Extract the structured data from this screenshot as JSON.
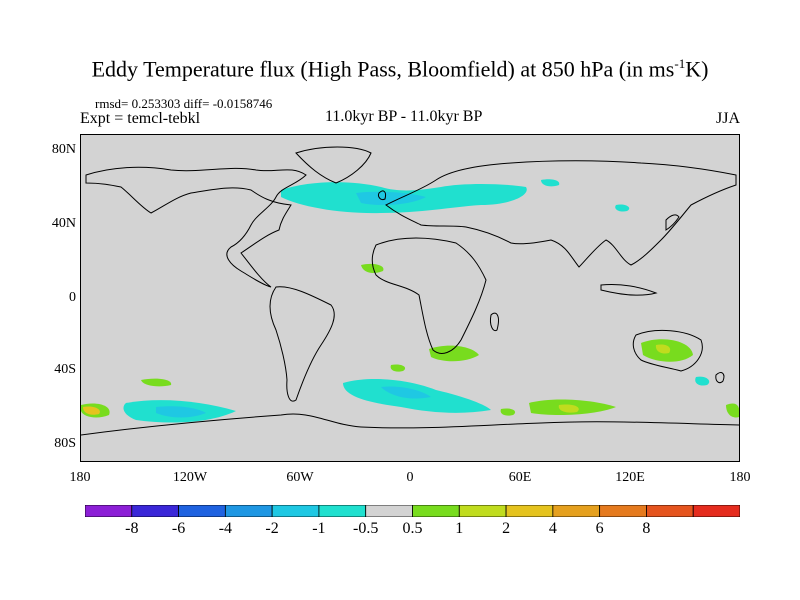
{
  "title": {
    "main": "Eddy Temperature flux (High Pass, Bloomfield) at 850 hPa (in ms",
    "sup": "-1",
    "end": "K)"
  },
  "stats": "rmsd= 0.253303 diff= -0.0158746",
  "experiment": "Expt = temcl-tebkl",
  "period": "11.0kyr BP - 11.0kyr BP",
  "season": "JJA",
  "map": {
    "lat_labels": [
      "80N",
      "40N",
      "0",
      "40S",
      "80S"
    ],
    "lon_labels": [
      "180",
      "120W",
      "60W",
      "0",
      "60E",
      "120E",
      "180"
    ],
    "background_color": "#d3d3d3",
    "coastline_color": "#000000"
  },
  "colorbar": {
    "colors": [
      "#8c1fd6",
      "#3a27d8",
      "#1f62e0",
      "#1f97e3",
      "#1fc8e3",
      "#20e0cf",
      "#d3d3d3",
      "#78dc1e",
      "#c0dc1e",
      "#e5c31e",
      "#e5a01e",
      "#e57a1e",
      "#e5541e",
      "#e52c1e"
    ],
    "labels": [
      "-8",
      "-6",
      "-4",
      "-2",
      "-1",
      "-0.5",
      "0.5",
      "1",
      "2",
      "4",
      "6",
      "8"
    ]
  }
}
